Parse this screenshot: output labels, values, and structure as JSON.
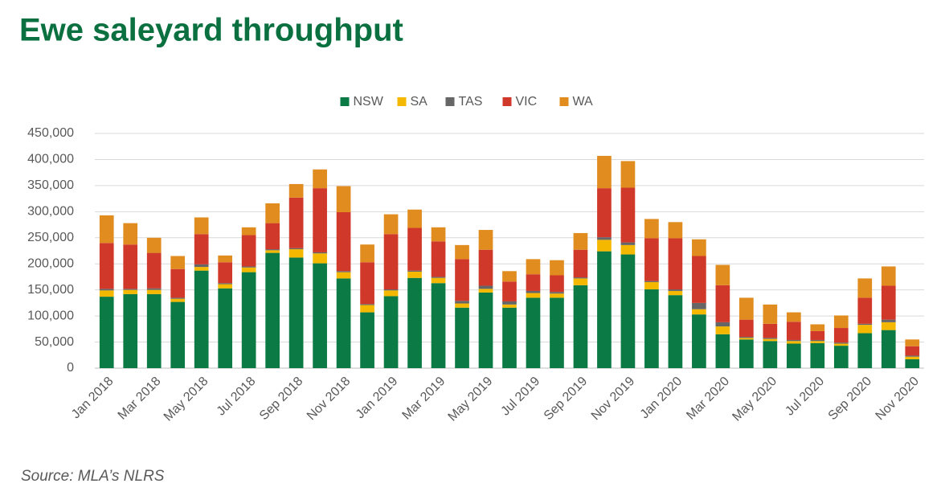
{
  "chart_data": {
    "type": "stacked_bar",
    "title": "Ewe saleyard throughput",
    "source": "Source: MLA’s NLRS",
    "categories": [
      "Jan 2018",
      null,
      "Mar 2018",
      null,
      "May 2018",
      null,
      "Jul 2018",
      null,
      "Sep 2018",
      null,
      "Nov 2018",
      null,
      "Jan 2019",
      null,
      "Mar 2019",
      null,
      "May 2019",
      null,
      "Jul 2019",
      null,
      "Sep 2019",
      null,
      "Nov 2019",
      null,
      "Jan 2020",
      null,
      "Mar 2020",
      null,
      "May 2020",
      null,
      "Jul 2020",
      null,
      "Sep 2020",
      null,
      "Nov 2020"
    ],
    "series": [
      {
        "name": "NSW",
        "color": "#0b7a45",
        "values": [
          137000,
          142000,
          142000,
          127000,
          187000,
          153000,
          184000,
          221000,
          212000,
          201000,
          172000,
          107000,
          138000,
          173000,
          163000,
          116000,
          145000,
          116000,
          135000,
          135000,
          159000,
          224000,
          218000,
          151000,
          140000,
          103000,
          65000,
          55000,
          52000,
          47000,
          48000,
          43000,
          67000,
          73000,
          17000
        ]
      },
      {
        "name": "SA",
        "color": "#f5b800",
        "values": [
          12000,
          8000,
          8000,
          6000,
          7000,
          8000,
          9000,
          5000,
          16000,
          19000,
          12000,
          14000,
          11000,
          12000,
          10000,
          8000,
          7000,
          6000,
          9000,
          8000,
          13000,
          22000,
          18000,
          14000,
          8000,
          10000,
          15000,
          3000,
          4000,
          5000,
          4000,
          4000,
          16000,
          15000,
          5000
        ]
      },
      {
        "name": "TAS",
        "color": "#666666",
        "values": [
          3000,
          2000,
          3000,
          2000,
          5000,
          2000,
          2000,
          2000,
          2000,
          2000,
          2000,
          2000,
          2000,
          2000,
          2000,
          5000,
          6000,
          6000,
          4000,
          3000,
          2000,
          5000,
          5000,
          2000,
          3000,
          12000,
          8000,
          2000,
          2000,
          2000,
          2000,
          2000,
          2000,
          5000,
          2000
        ]
      },
      {
        "name": "VIC",
        "color": "#d0392a",
        "values": [
          88000,
          85000,
          68000,
          55000,
          58000,
          40000,
          60000,
          50000,
          97000,
          123000,
          113000,
          80000,
          106000,
          82000,
          68000,
          80000,
          69000,
          38000,
          32000,
          32000,
          53000,
          94000,
          105000,
          82000,
          98000,
          90000,
          71000,
          33000,
          27000,
          35000,
          17000,
          28000,
          50000,
          65000,
          18000
        ]
      },
      {
        "name": "WA",
        "color": "#e08c1e",
        "values": [
          53000,
          41000,
          29000,
          25000,
          32000,
          13000,
          15000,
          38000,
          26000,
          36000,
          50000,
          34000,
          38000,
          35000,
          27000,
          27000,
          38000,
          20000,
          29000,
          29000,
          32000,
          62000,
          51000,
          37000,
          31000,
          32000,
          39000,
          42000,
          37000,
          18000,
          13000,
          24000,
          37000,
          37000,
          13000
        ]
      }
    ],
    "ylim": [
      0,
      450000
    ],
    "yticks": [
      0,
      {
        "value": 50000,
        "label": "50,000"
      },
      {
        "value": 100000,
        "label": "100,000"
      },
      {
        "value": 150000,
        "label": "150,000"
      },
      {
        "value": 200000,
        "label": "200,000"
      },
      {
        "value": 250000,
        "label": "250,000"
      },
      {
        "value": 300000,
        "label": "300,000"
      },
      {
        "value": 350000,
        "label": "350,000"
      },
      {
        "value": 400000,
        "label": "400,000"
      },
      {
        "value": 450000,
        "label": "450,000"
      }
    ],
    "grid": true,
    "legend": "top"
  }
}
